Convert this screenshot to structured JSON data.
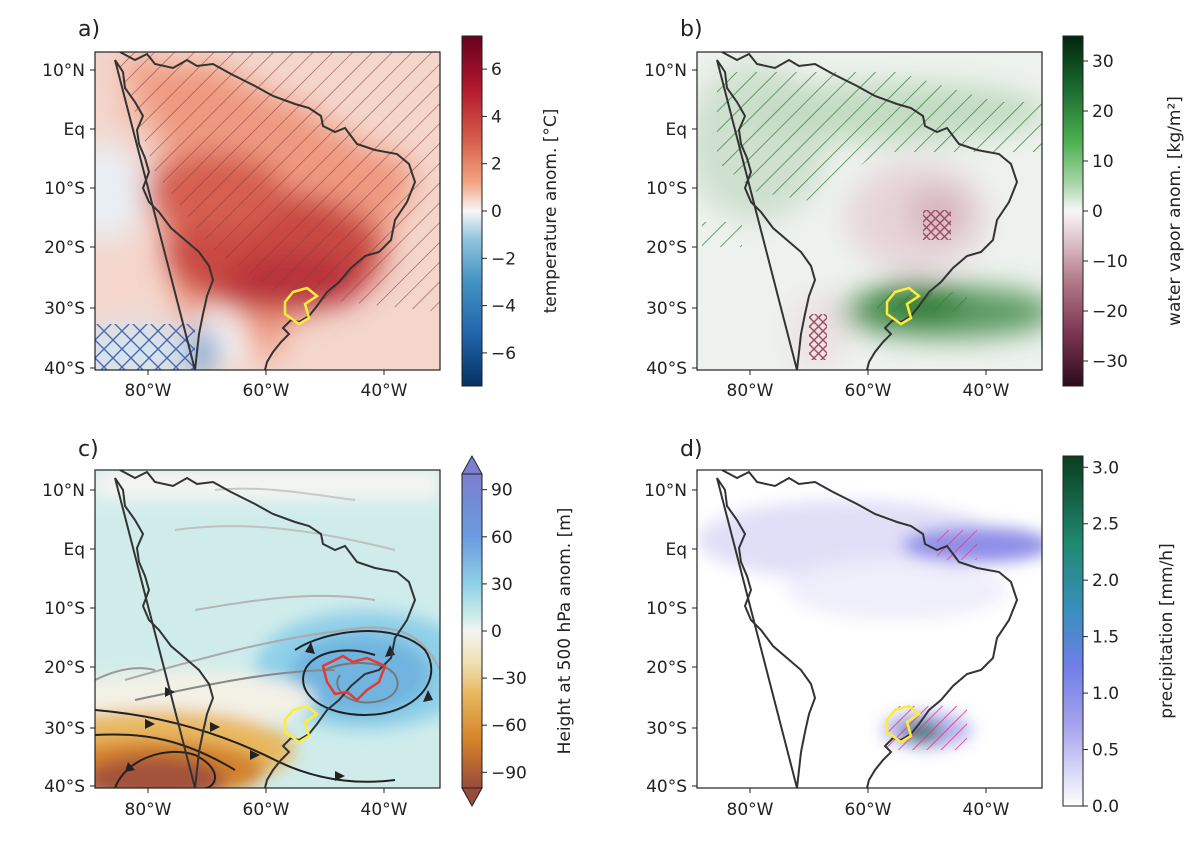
{
  "figure": {
    "x_ticks": [
      "80°W",
      "60°W",
      "40°W"
    ],
    "y_ticks": [
      "10°N",
      "Eq",
      "10°S",
      "20°S",
      "30°S",
      "40°S"
    ]
  },
  "panels": [
    {
      "letter": "a)",
      "colorbar": {
        "label": "temperature anom. [°C]",
        "ticks": [
          "6",
          "4",
          "2",
          "0",
          "−2",
          "−4",
          "−6"
        ],
        "range": [
          -7.4,
          7.4
        ],
        "tick_values": [
          6,
          4,
          2,
          0,
          -2,
          -4,
          -6
        ]
      }
    },
    {
      "letter": "b)",
      "colorbar": {
        "label": "water vapor anom. [kg/m²]",
        "ticks": [
          "30",
          "20",
          "10",
          "0",
          "−10",
          "−20",
          "−30"
        ],
        "range": [
          -35,
          35
        ],
        "tick_values": [
          30,
          20,
          10,
          0,
          -10,
          -20,
          -30
        ]
      }
    },
    {
      "letter": "c)",
      "colorbar": {
        "label": "Height at 500 hPa anom. [m]",
        "ticks": [
          "90",
          "60",
          "30",
          "0",
          "−30",
          "−60",
          "−90"
        ],
        "range": [
          -100,
          100
        ],
        "tick_values": [
          90,
          60,
          30,
          0,
          -30,
          -60,
          -90
        ]
      }
    },
    {
      "letter": "d)",
      "colorbar": {
        "label": "precipitation [mm/h]",
        "ticks": [
          "3.0",
          "2.5",
          "2.0",
          "1.5",
          "1.0",
          "0.5",
          "0.0"
        ],
        "range": [
          0,
          3.1
        ],
        "tick_values": [
          3.0,
          2.5,
          2.0,
          1.5,
          1.0,
          0.5,
          0.0
        ]
      }
    }
  ],
  "colors": {
    "coast": "#333333",
    "region_outline": "#ffeb3b",
    "anomaly_outline": "#e53935",
    "warm": "#c0392b",
    "cold": "#2166ac",
    "moist": "#2e7d32",
    "dry": "#8e4a5a",
    "precip": "#8a86e6"
  }
}
